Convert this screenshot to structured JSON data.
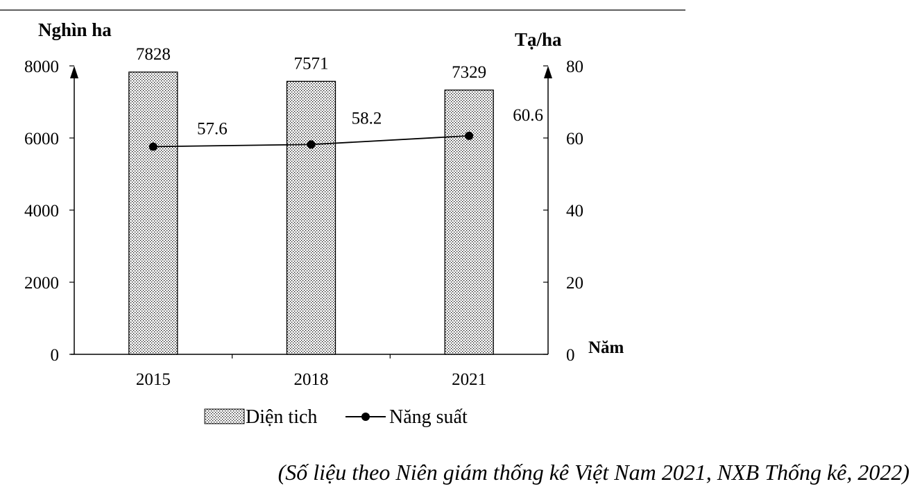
{
  "chart_data": {
    "type": "bar",
    "categories": [
      "2015",
      "2018",
      "2021"
    ],
    "series": [
      {
        "name": "Diện tich",
        "type": "bar",
        "axis": "left",
        "values": [
          7828,
          7571,
          7329
        ],
        "labels": [
          "7828",
          "7571",
          "7329"
        ]
      },
      {
        "name": "Năng suất",
        "type": "line",
        "axis": "right",
        "values": [
          57.6,
          58.2,
          60.6
        ],
        "labels": [
          "57.6",
          "58.2",
          "60.6"
        ]
      }
    ],
    "y_left": {
      "label": "Nghìn ha",
      "range": [
        0,
        8000
      ],
      "ticks": [
        "0",
        "2000",
        "4000",
        "6000",
        "8000"
      ]
    },
    "y_right": {
      "label": "Tạ/ha",
      "range": [
        0,
        80
      ],
      "ticks": [
        "0",
        "20",
        "40",
        "60",
        "80"
      ]
    },
    "x_axis_label": "Năm",
    "grid": false,
    "legend_position": "bottom",
    "colors": {
      "line": "#000000",
      "bar_fill": "#ffffff",
      "bar_pattern_dots": "#000000"
    }
  },
  "source_note": "(Số liệu theo Niên giám thống kê Việt Nam 2021, NXB Thống kê, 2022)"
}
